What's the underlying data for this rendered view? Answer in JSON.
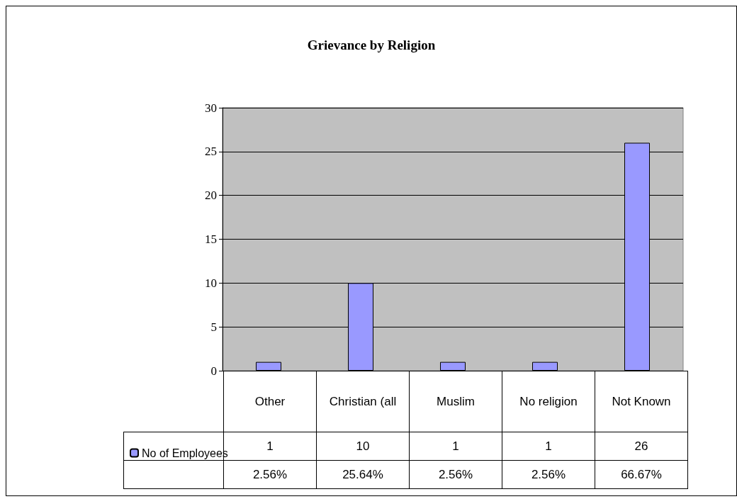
{
  "chart_data": {
    "type": "bar",
    "title": "Grievance by Religion",
    "categories": [
      "Other",
      "Christian (all",
      "Muslim",
      "No religion",
      "Not Known"
    ],
    "series": [
      {
        "name": "No of Employees",
        "color": "#9999ff",
        "values": [
          1,
          10,
          1,
          1,
          26
        ]
      }
    ],
    "ylim": [
      0,
      30
    ],
    "yticks": [
      0,
      5,
      10,
      15,
      20,
      25,
      30
    ],
    "grid": "y",
    "legend": "bottom left",
    "data_labels": true,
    "annotations": [
      "2.56%",
      "25.64%",
      "2.56%",
      "2.56%",
      "66.67%"
    ]
  }
}
